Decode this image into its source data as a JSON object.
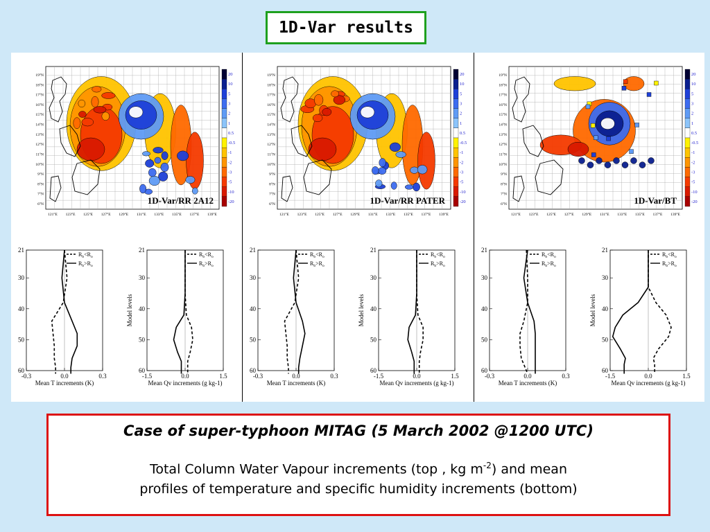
{
  "title": "1D-Var results",
  "panels": [
    {
      "map_label": "1D-Var/RR 2A12",
      "t_profile": {
        "legend": [
          "R_b<R_o",
          "R_b>R_o"
        ],
        "xlabel": "Mean T increments (K)",
        "x_ticks": [
          "-0.3",
          "0.0",
          "0.3"
        ],
        "y_ticks": [
          "21",
          "30",
          "40",
          "50",
          "60"
        ]
      },
      "q_profile": {
        "legend": [
          "R_b<R_o",
          "R_b>R_o"
        ],
        "xlabel": "Mean Qv increments (g kg-1)",
        "ylabel": "Model levels",
        "x_ticks": [
          "-1.5",
          "0.0",
          "1.5"
        ],
        "y_ticks": [
          "21",
          "30",
          "40",
          "50",
          "60"
        ]
      }
    },
    {
      "map_label": "1D-Var/RR PATER",
      "t_profile": {
        "legend": [
          "R_b<R_o",
          "R_b>R_o"
        ],
        "xlabel": "Mean T increments (K)",
        "x_ticks": [
          "-0.3",
          "0.0",
          "0.3"
        ],
        "y_ticks": [
          "21",
          "30",
          "40",
          "50",
          "60"
        ]
      },
      "q_profile": {
        "legend": [
          "R_b<R_o",
          "R_b>R_o"
        ],
        "xlabel": "Mean Qv increments (g kg-1)",
        "ylabel": "Model levels",
        "x_ticks": [
          "-1.5",
          "0.0",
          "1.5"
        ],
        "y_ticks": [
          "21",
          "30",
          "40",
          "50",
          "60"
        ]
      }
    },
    {
      "map_label": "1D-Var/BT",
      "t_profile": {
        "legend": [
          "R_b<R_o",
          "R_b>R_o"
        ],
        "xlabel": "Mean T increments (K)",
        "x_ticks": [
          "-0.3",
          "0.0",
          "0.3"
        ],
        "y_ticks": [
          "21",
          "30",
          "40",
          "50",
          "60"
        ]
      },
      "q_profile": {
        "legend": [
          "R_b<R_o",
          "R_b>R_o"
        ],
        "xlabel": "Mean Qv increments (g kg-1)",
        "ylabel": "Model levels",
        "x_ticks": [
          "-1.5",
          "0.0",
          "1.5"
        ],
        "y_ticks": [
          "21",
          "30",
          "40",
          "50",
          "60"
        ]
      }
    }
  ],
  "map_axes": {
    "lat_ticks": [
      "19°N",
      "18°N",
      "17°N",
      "16°N",
      "15°N",
      "14°N",
      "13°N",
      "12°N",
      "11°N",
      "10°N",
      "9°N",
      "8°N",
      "7°N",
      "6°N"
    ],
    "lon_ticks": [
      "121°E",
      "123°E",
      "125°E",
      "127°E",
      "129°E",
      "131°E",
      "133°E",
      "135°E",
      "137°E",
      "139°E"
    ]
  },
  "colorbar": {
    "labels": [
      "20",
      "10",
      "5",
      "3",
      "2",
      "1",
      "0.5",
      "-0.5",
      "-1",
      "-2",
      "-3",
      "-5",
      "-10",
      "-20"
    ],
    "colors": [
      "#000033",
      "#0a1f8f",
      "#1e40d8",
      "#3d6cf0",
      "#5f9bf5",
      "#8cc4fa",
      "#ffffff",
      "#fff200",
      "#ffc400",
      "#ff9500",
      "#ff6a00",
      "#f53a00",
      "#d91a00",
      "#a80000"
    ]
  },
  "caption": {
    "heading": "Case of super-typhoon MITAG (5 March 2002 @1200 UTC)",
    "line1_pre": "Total Column Water Vapour increments (top , kg m",
    "line1_sup": "-2",
    "line1_post": ") and mean",
    "line2": "profiles of temperature and specific humidity increments (bottom)"
  },
  "chart_data": [
    {
      "type": "line",
      "title": "",
      "xlabel": "Mean T increments (K)",
      "ylabel": "",
      "xlim": [
        -0.3,
        0.3
      ],
      "ylim": [
        60,
        21
      ],
      "y": [
        21,
        30,
        38,
        44,
        48,
        52,
        56,
        59,
        61
      ],
      "series": [
        {
          "name": "R_b<R_o",
          "values": [
            0.0,
            0.02,
            -0.01,
            -0.1,
            -0.09,
            -0.08,
            -0.08,
            -0.07,
            -0.07
          ]
        },
        {
          "name": "R_b>R_o",
          "values": [
            0.0,
            -0.02,
            0.0,
            0.06,
            0.1,
            0.1,
            0.06,
            0.05,
            0.05
          ]
        }
      ]
    },
    {
      "type": "line",
      "title": "",
      "xlabel": "Mean Qv increments (g kg-1)",
      "ylabel": "Model levels",
      "xlim": [
        -1.5,
        1.5
      ],
      "ylim": [
        60,
        21
      ],
      "y": [
        21,
        35,
        42,
        46,
        50,
        54,
        57,
        61
      ],
      "series": [
        {
          "name": "R_b<R_o",
          "values": [
            0.0,
            0.0,
            0.05,
            0.25,
            0.3,
            0.2,
            0.1,
            0.1
          ]
        },
        {
          "name": "R_b>R_o",
          "values": [
            0.0,
            0.0,
            -0.05,
            -0.35,
            -0.45,
            -0.3,
            -0.15,
            -0.15
          ]
        }
      ]
    },
    {
      "type": "line",
      "title": "",
      "xlabel": "Mean T increments (K)",
      "ylabel": "",
      "xlim": [
        -0.3,
        0.3
      ],
      "ylim": [
        60,
        21
      ],
      "y": [
        21,
        30,
        38,
        44,
        48,
        52,
        56,
        59,
        61
      ],
      "series": [
        {
          "name": "R_b<R_o",
          "values": [
            0.0,
            0.02,
            -0.01,
            -0.09,
            -0.08,
            -0.07,
            -0.07,
            -0.06,
            -0.06
          ]
        },
        {
          "name": "R_b>R_o",
          "values": [
            0.0,
            -0.02,
            0.0,
            0.05,
            0.07,
            0.05,
            0.03,
            0.02,
            0.02
          ]
        }
      ]
    },
    {
      "type": "line",
      "title": "",
      "xlabel": "Mean Qv increments (g kg-1)",
      "ylabel": "Model levels",
      "xlim": [
        -1.5,
        1.5
      ],
      "ylim": [
        60,
        21
      ],
      "y": [
        21,
        35,
        42,
        46,
        50,
        54,
        57,
        61
      ],
      "series": [
        {
          "name": "R_b<R_o",
          "values": [
            0.0,
            0.0,
            0.05,
            0.25,
            0.25,
            0.15,
            0.1,
            0.1
          ]
        },
        {
          "name": "R_b>R_o",
          "values": [
            0.0,
            0.0,
            -0.05,
            -0.3,
            -0.35,
            -0.2,
            -0.1,
            -0.1
          ]
        }
      ]
    },
    {
      "type": "line",
      "title": "",
      "xlabel": "Mean T increments (K)",
      "ylabel": "",
      "xlim": [
        -0.3,
        0.3
      ],
      "ylim": [
        60,
        21
      ],
      "y": [
        21,
        30,
        38,
        44,
        48,
        52,
        56,
        59,
        61
      ],
      "series": [
        {
          "name": "R_b<R_o",
          "values": [
            -0.01,
            0.0,
            0.0,
            -0.03,
            -0.06,
            -0.06,
            -0.05,
            -0.02,
            0.0
          ]
        },
        {
          "name": "R_b>R_o",
          "values": [
            0.0,
            -0.03,
            0.0,
            0.05,
            0.06,
            0.06,
            0.06,
            0.06,
            0.06
          ]
        }
      ]
    },
    {
      "type": "line",
      "title": "",
      "xlabel": "Mean Qv increments (g kg-1)",
      "ylabel": "Model levels",
      "xlim": [
        -1.5,
        1.5
      ],
      "ylim": [
        60,
        21
      ],
      "y": [
        21,
        33,
        38,
        42,
        46,
        49,
        53,
        56,
        58,
        61
      ],
      "series": [
        {
          "name": "R_b<R_o",
          "values": [
            0.0,
            0.0,
            0.3,
            0.7,
            0.9,
            0.8,
            0.4,
            0.2,
            0.25,
            0.25
          ]
        },
        {
          "name": "R_b>R_o",
          "values": [
            0.0,
            0.0,
            -0.4,
            -1.0,
            -1.3,
            -1.4,
            -1.1,
            -0.9,
            -0.95,
            -0.95
          ]
        }
      ]
    }
  ]
}
